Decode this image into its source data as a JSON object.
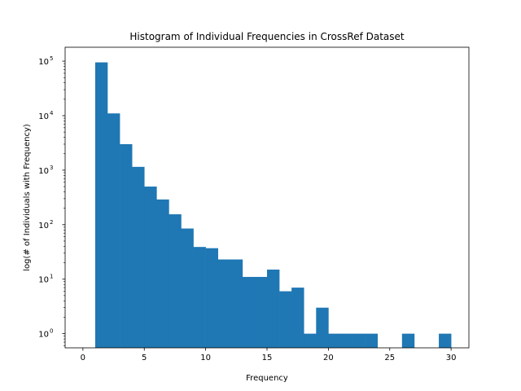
{
  "chart_data": {
    "type": "bar",
    "title": "Histogram of Individual Frequencies in CrossRef Dataset",
    "xlabel": "Frequency",
    "ylabel": "log(# of Individuals with Frequency)",
    "yscale": "log",
    "grid": false,
    "legend": "none",
    "color": "#1f77b4",
    "xlim": [
      -1.45,
      31.45
    ],
    "ylim": [
      0.55,
      180000
    ],
    "x_ticks": [
      0,
      5,
      10,
      15,
      20,
      25,
      30
    ],
    "y_ticks": [
      {
        "value": 1,
        "base": "10",
        "exp": "0"
      },
      {
        "value": 10,
        "base": "10",
        "exp": "1"
      },
      {
        "value": 100,
        "base": "10",
        "exp": "2"
      },
      {
        "value": 1000,
        "base": "10",
        "exp": "3"
      },
      {
        "value": 10000,
        "base": "10",
        "exp": "4"
      },
      {
        "value": 100000,
        "base": "10",
        "exp": "5"
      }
    ],
    "bins": [
      {
        "x0": 1,
        "x1": 2,
        "count": 95000
      },
      {
        "x0": 2,
        "x1": 3,
        "count": 11000
      },
      {
        "x0": 3,
        "x1": 4,
        "count": 3000
      },
      {
        "x0": 4,
        "x1": 5,
        "count": 1150
      },
      {
        "x0": 5,
        "x1": 6,
        "count": 500
      },
      {
        "x0": 6,
        "x1": 7,
        "count": 290
      },
      {
        "x0": 7,
        "x1": 8,
        "count": 155
      },
      {
        "x0": 8,
        "x1": 9,
        "count": 85
      },
      {
        "x0": 9,
        "x1": 10,
        "count": 39
      },
      {
        "x0": 10,
        "x1": 11,
        "count": 37
      },
      {
        "x0": 11,
        "x1": 12,
        "count": 23
      },
      {
        "x0": 12,
        "x1": 13,
        "count": 23
      },
      {
        "x0": 13,
        "x1": 14,
        "count": 11
      },
      {
        "x0": 14,
        "x1": 15,
        "count": 11
      },
      {
        "x0": 15,
        "x1": 16,
        "count": 15
      },
      {
        "x0": 16,
        "x1": 17,
        "count": 6
      },
      {
        "x0": 17,
        "x1": 18,
        "count": 7
      },
      {
        "x0": 18,
        "x1": 19,
        "count": 1
      },
      {
        "x0": 19,
        "x1": 20,
        "count": 3
      },
      {
        "x0": 20,
        "x1": 21,
        "count": 1
      },
      {
        "x0": 21,
        "x1": 22,
        "count": 1
      },
      {
        "x0": 22,
        "x1": 23,
        "count": 1
      },
      {
        "x0": 23,
        "x1": 24,
        "count": 1
      },
      {
        "x0": 26,
        "x1": 27,
        "count": 1
      },
      {
        "x0": 29,
        "x1": 30,
        "count": 1
      }
    ]
  }
}
